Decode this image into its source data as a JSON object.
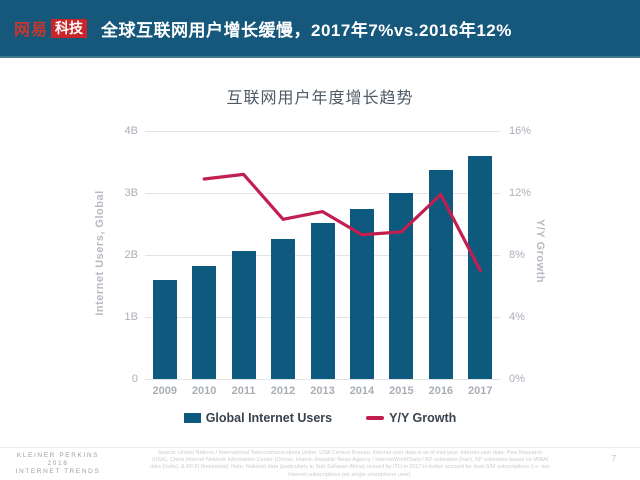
{
  "header": {
    "logo_brand": "网易",
    "logo_sub": "科技",
    "title": "全球互联网用户增长缓慢，2017年7%vs.2016年12%",
    "bg_color": "#15587b",
    "logo_red": "#c8262a"
  },
  "chart": {
    "title": "互联网用户年度增长趋势"
  },
  "chart_data": {
    "type": "bar",
    "categories": [
      "2009",
      "2010",
      "2011",
      "2012",
      "2013",
      "2014",
      "2015",
      "2016",
      "2017"
    ],
    "series": [
      {
        "name": "Global Internet Users",
        "type": "bar",
        "unit": "B",
        "color": "#0e5a7e",
        "values": [
          1.6,
          1.83,
          2.06,
          2.26,
          2.52,
          2.75,
          3.0,
          3.37,
          3.6
        ]
      },
      {
        "name": "Y/Y Growth",
        "type": "line",
        "unit": "%",
        "color": "#c01f50",
        "values": [
          null,
          12.9,
          13.2,
          10.3,
          10.8,
          9.3,
          9.5,
          11.9,
          7.0
        ]
      }
    ],
    "title": "互联网用户年度增长趋势",
    "left_axis": {
      "label": "Internet Users, Global",
      "ticks": [
        "4B",
        "3B",
        "2B",
        "1B",
        "0"
      ],
      "min": 0,
      "max": 4
    },
    "right_axis": {
      "label": "Y/Y Growth",
      "ticks": [
        "16%",
        "12%",
        "8%",
        "4%",
        "0%"
      ],
      "min": 0,
      "max": 16
    },
    "grid": true,
    "legend_position": "bottom"
  },
  "legend": {
    "items": [
      {
        "label": "Global Internet Users",
        "color": "#0e5a7e",
        "swatch": "square"
      },
      {
        "label": "Y/Y Growth",
        "color": "#c01f50",
        "swatch": "line"
      }
    ]
  },
  "footer": {
    "brand_line1": "KLEINER PERKINS",
    "brand_line2": "2018",
    "brand_line3": "INTERNET TRENDS",
    "source_text": "Source: United Nations / International Telecommunications Union, USA Census Bureau. Internet user data is as of mid-year. Internet user data: Pew Research (USA), China Internet Network Information Center (China), Islamic Republic News Agency / InternetWorldStats / KP estimates (Iran), KP estimates based on IAMAI data (India), & APJII (Indonesia). Note: National data (particularly in Sub-Saharan Africa) revised by ITU in 2017 to better account for dual-SIM subscriptions (i.e. two Internet subscriptions per single smartphone user).",
    "page_number": "7"
  }
}
